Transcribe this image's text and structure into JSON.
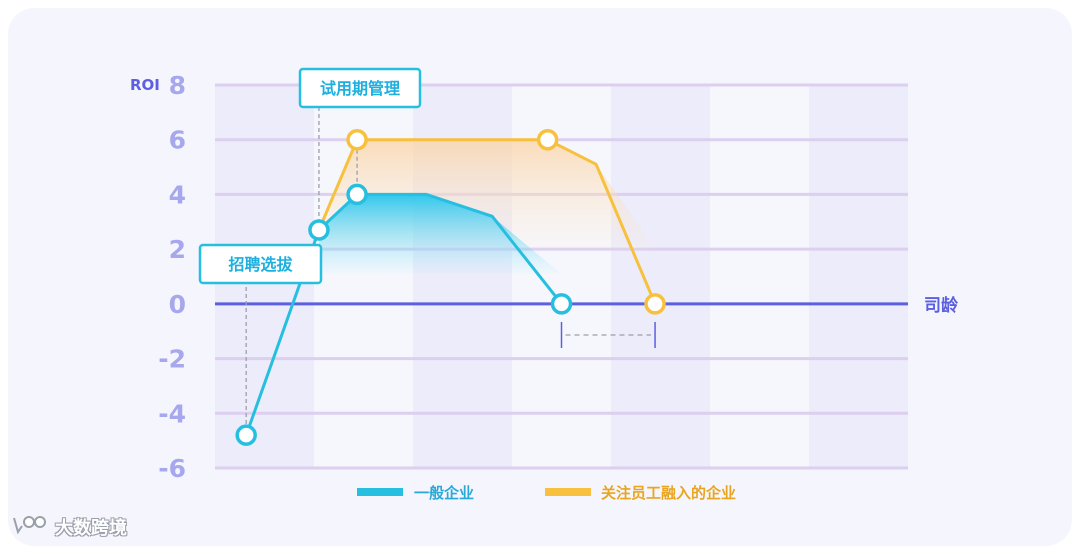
{
  "chart_data": {
    "type": "line",
    "ylabel": "ROI",
    "xlabel": "司龄",
    "ylim": [
      -6,
      8
    ],
    "y_ticks": [
      "8",
      "6",
      "4",
      "2",
      "0",
      "-2",
      "-4",
      "-6"
    ],
    "x_range": [
      0,
      10
    ],
    "grid": true,
    "legend_position": "bottom",
    "series": [
      {
        "name": "一般企业",
        "color": "#26bfe0",
        "x": [
          0.45,
          1.5,
          2.05,
          3.05,
          4.0,
          5.0
        ],
        "y": [
          -4.8,
          2.7,
          4.0,
          4.0,
          3.2,
          0
        ]
      },
      {
        "name": "关注员工融入的企业",
        "color": "#f7c13e",
        "x": [
          1.5,
          2.05,
          4.8,
          5.5,
          6.35
        ],
        "y": [
          2.7,
          6.0,
          6.0,
          5.1,
          0
        ]
      }
    ],
    "annotations": [
      {
        "label": "招聘选拔",
        "x": 0.45,
        "y": -4.8
      },
      {
        "label": "试用期管理",
        "x": 1.5,
        "y": 2.7
      }
    ]
  },
  "watermark": "大数跨境"
}
